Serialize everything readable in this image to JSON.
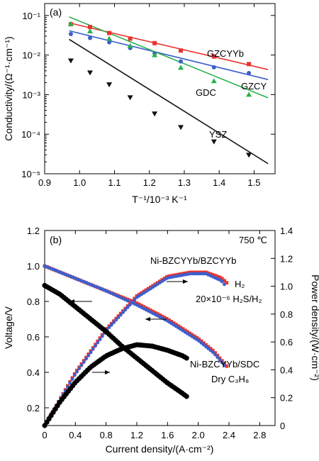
{
  "chart_data": [
    {
      "type": "scatter",
      "panel": "(a)",
      "xlabel": "T⁻¹/10⁻³ K⁻¹",
      "ylabel": "Conductivity/(Ω⁻¹·cm⁻¹)",
      "xlim": [
        0.9,
        1.56
      ],
      "ylim": [
        1e-05,
        0.2
      ],
      "yscale": "log",
      "xticks": [
        "0.9",
        "1.0",
        "1.1",
        "1.2",
        "1.3",
        "1.4",
        "1.5"
      ],
      "yticks": [
        "10⁻⁵",
        "10⁻⁴",
        "10⁻³",
        "10⁻²",
        "10⁻¹"
      ],
      "legend": "none",
      "grid": false,
      "series": [
        {
          "name": "GZCYYb",
          "color": "#e8332f",
          "marker": "square",
          "x": [
            0.975,
            1.03,
            1.085,
            1.145,
            1.215,
            1.29,
            1.385,
            1.485
          ],
          "y": [
            0.06,
            0.051,
            0.036,
            0.026,
            0.02,
            0.013,
            0.0092,
            0.0059
          ],
          "fit_y": [
            0.065,
            0.0043
          ]
        },
        {
          "name": "GZCY",
          "color": "#3c5fcd",
          "marker": "circle",
          "x": [
            0.975,
            1.03,
            1.085,
            1.145,
            1.215,
            1.29,
            1.385,
            1.485
          ],
          "y": [
            0.034,
            0.027,
            0.021,
            0.015,
            0.011,
            0.0069,
            0.0049,
            0.0035
          ],
          "fit_y": [
            0.041,
            0.0024
          ]
        },
        {
          "name": "GDC",
          "color": "#27b24a",
          "marker": "triangle-up",
          "x": [
            0.975,
            1.03,
            1.085,
            1.145,
            1.215,
            1.29,
            1.385,
            1.485
          ],
          "y": [
            0.061,
            0.04,
            0.026,
            0.017,
            0.01,
            0.0048,
            0.0022,
            0.001
          ],
          "fit_y": [
            0.092,
            0.00083
          ]
        },
        {
          "name": "YSZ",
          "color": "#111111",
          "marker": "triangle-down",
          "x": [
            0.975,
            1.03,
            1.085,
            1.145,
            1.215,
            1.29,
            1.385,
            1.485
          ],
          "y": [
            0.0072,
            0.0036,
            0.0018,
            0.00085,
            0.00033,
            0.00015,
            6.5e-05,
            3e-05
          ],
          "fit_y": [
            0.025,
            1.8e-05
          ]
        }
      ],
      "fit_x": [
        0.97,
        1.54
      ],
      "annotations": [
        "GZCYYb",
        "GZCY",
        "GDC",
        "YSZ"
      ]
    },
    {
      "type": "line",
      "panel": "(b)",
      "xlabel": "Current density/(A·cm⁻²)",
      "ylabel": "Voltage/V",
      "y2label": "Power density/(W·cm⁻²)",
      "xlim": [
        0,
        3.0
      ],
      "ylim": [
        0.1,
        1.2
      ],
      "y2lim": [
        0,
        1.4
      ],
      "xticks": [
        "0",
        "0.4",
        "0.8",
        "1.2",
        "1.6",
        "2.0",
        "2.4",
        "2.8"
      ],
      "yticks": [
        "0.2",
        "0.4",
        "0.6",
        "0.8",
        "1.0",
        "1.2"
      ],
      "y2ticks": [
        "0",
        "0.2",
        "0.4",
        "0.6",
        "0.8",
        "1.0",
        "1.2",
        "1.4"
      ],
      "legend": "none",
      "grid": false,
      "temperature_label": "750 ℃",
      "series": [
        {
          "name": "H2 voltage",
          "color": "#e8332f",
          "axis": "left",
          "x": [
            0,
            0.4,
            0.8,
            1.2,
            1.6,
            2.0,
            2.2,
            2.38
          ],
          "y": [
            1.0,
            0.93,
            0.86,
            0.79,
            0.7,
            0.59,
            0.52,
            0.43
          ]
        },
        {
          "name": "H2S/H2 voltage",
          "color": "#3c5fcd",
          "axis": "left",
          "x": [
            0,
            0.4,
            0.8,
            1.2,
            1.6,
            2.0,
            2.2,
            2.36
          ],
          "y": [
            1.0,
            0.93,
            0.86,
            0.78,
            0.69,
            0.58,
            0.51,
            0.43
          ]
        },
        {
          "name": "H2 power",
          "color": "#e8332f",
          "axis": "right",
          "x": [
            0,
            0.4,
            0.8,
            1.2,
            1.6,
            1.9,
            2.1,
            2.3,
            2.38
          ],
          "y": [
            0,
            0.38,
            0.69,
            0.93,
            1.07,
            1.1,
            1.1,
            1.06,
            1.02
          ]
        },
        {
          "name": "H2S/H2 power",
          "color": "#3c5fcd",
          "axis": "right",
          "x": [
            0,
            0.4,
            0.8,
            1.2,
            1.6,
            1.9,
            2.1,
            2.3,
            2.36
          ],
          "y": [
            0,
            0.37,
            0.68,
            0.92,
            1.06,
            1.09,
            1.09,
            1.04,
            1.0
          ]
        },
        {
          "name": "C3H8 voltage",
          "color": "#000000",
          "axis": "left",
          "x": [
            0,
            0.2,
            0.4,
            0.6,
            0.8,
            1.0,
            1.2,
            1.4,
            1.6,
            1.8,
            1.86
          ],
          "y": [
            0.89,
            0.84,
            0.77,
            0.7,
            0.63,
            0.55,
            0.48,
            0.41,
            0.34,
            0.28,
            0.26
          ]
        },
        {
          "name": "C3H8 power",
          "color": "#000000",
          "axis": "right",
          "x": [
            0,
            0.2,
            0.4,
            0.6,
            0.8,
            1.0,
            1.2,
            1.4,
            1.6,
            1.8,
            1.86
          ],
          "y": [
            0,
            0.17,
            0.31,
            0.42,
            0.5,
            0.55,
            0.58,
            0.57,
            0.54,
            0.5,
            0.48
          ]
        }
      ],
      "annotations": [
        "Ni-BZCYYb/BZCYYb",
        "H₂",
        "20×10⁻⁶ H₂S/H₂",
        "Ni-BZCYYb/SDC",
        "Dry C₃H₈"
      ]
    }
  ]
}
